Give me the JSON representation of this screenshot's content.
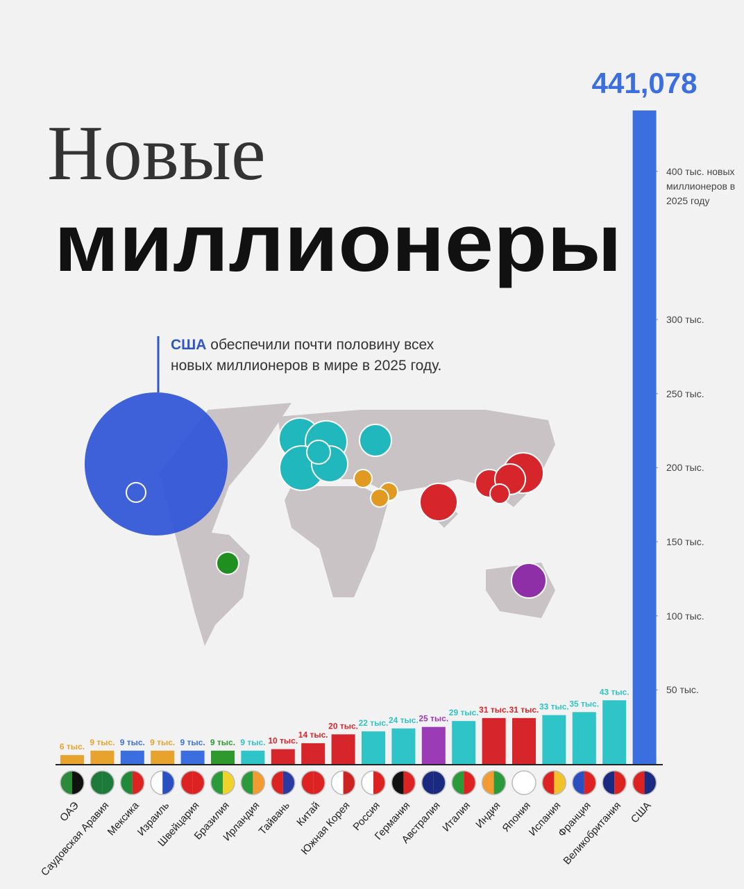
{
  "chart_data": {
    "type": "bar",
    "title_line1": "Новые",
    "title_line2": "миллионеры",
    "annotation": {
      "highlight": "США",
      "line1": "обеспечили почти половину всех",
      "line2": "новых миллионеров в мире в 2025 году."
    },
    "categories": [
      "ОАЭ",
      "Саудовская Аравия",
      "Мексика",
      "Израиль",
      "Швейцария",
      "Бразилия",
      "Ирландия",
      "Тайвань",
      "Китай",
      "Южная Корея",
      "Россия",
      "Германия",
      "Австралия",
      "Италия",
      "Индия",
      "Япония",
      "Испания",
      "Франция",
      "Великобритания",
      "США"
    ],
    "values": [
      6000,
      9000,
      9000,
      9000,
      9000,
      9000,
      9000,
      10000,
      14000,
      20000,
      22000,
      24000,
      25000,
      29000,
      31000,
      31000,
      33000,
      35000,
      43000,
      441078
    ],
    "value_labels": [
      "6 тыс.",
      "9 тыс.",
      "9 тыс.",
      "9 тыс.",
      "9 тыс.",
      "9 тыс.",
      "9 тыс.",
      "10 тыс.",
      "14 тыс.",
      "20 тыс.",
      "22 тыс.",
      "24 тыс.",
      "25 тыс.",
      "29 тыс.",
      "31 тыс.",
      "31 тыс.",
      "33 тыс.",
      "35 тыс.",
      "43 тыс.",
      "441,078"
    ],
    "colors": [
      "#e8a32e",
      "#e8a32e",
      "#3b6fe0",
      "#e8a32e",
      "#3b6fe0",
      "#2e9a2e",
      "#2ec4c8",
      "#d7262b",
      "#d7262b",
      "#d7262b",
      "#2ec4c8",
      "#2ec4c8",
      "#9b3bb5",
      "#2ec4c8",
      "#d7262b",
      "#d7262b",
      "#2ec4c8",
      "#2ec4c8",
      "#2ec4c8",
      "#3b6fe0"
    ],
    "ylim": [
      0,
      450000
    ],
    "yticks": [
      {
        "value": 50000,
        "label": "50 тыс."
      },
      {
        "value": 100000,
        "label": "100 тыс."
      },
      {
        "value": 150000,
        "label": "150 тыс."
      },
      {
        "value": 200000,
        "label": "200 тыс."
      },
      {
        "value": 250000,
        "label": "250 тыс."
      },
      {
        "value": 300000,
        "label": "300 тыс."
      },
      {
        "value": 400000,
        "label": "400 тыс. новых миллионеров в 2025 году"
      }
    ]
  }
}
